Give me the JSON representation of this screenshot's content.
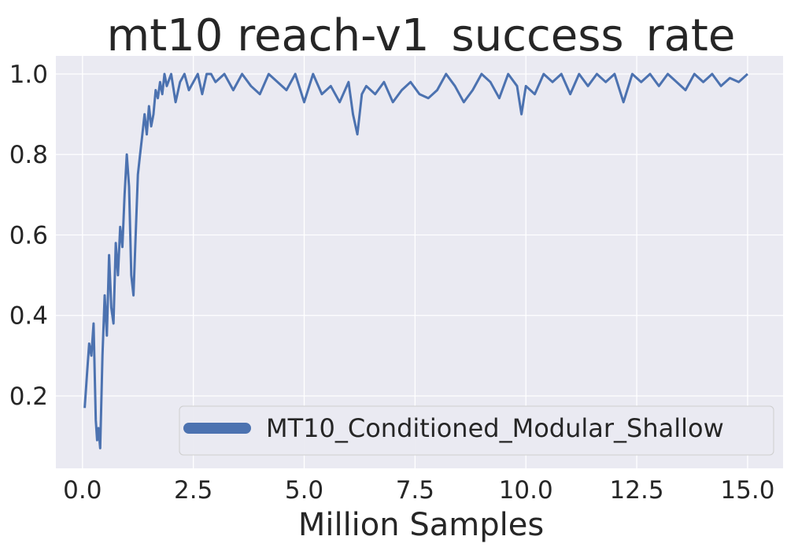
{
  "chart_data": {
    "type": "line",
    "title": "mt10 reach-v1_success_rate",
    "xlabel": "Million Samples",
    "ylabel": "",
    "xlim": [
      -0.6,
      15.8
    ],
    "ylim": [
      0.02,
      1.045
    ],
    "grid": true,
    "legend": "lower-right",
    "x_ticks": [
      0,
      2.5,
      5,
      7.5,
      10,
      12.5,
      15
    ],
    "x_tick_labels": [
      "0.0",
      "2.5",
      "5.0",
      "7.5",
      "10.0",
      "12.5",
      "15.0"
    ],
    "y_ticks": [
      0.2,
      0.4,
      0.6,
      0.8,
      1.0
    ],
    "y_tick_labels": [
      "0.2",
      "0.4",
      "0.6",
      "0.8",
      "1.0"
    ],
    "colors": {
      "background": "#eaeaf2",
      "grid": "#ffffff",
      "line": "#4c72b0",
      "text": "#262626"
    },
    "series": [
      {
        "name": "MT10_Conditioned_Modular_Shallow",
        "x": [
          0.05,
          0.1,
          0.15,
          0.2,
          0.25,
          0.3,
          0.33,
          0.36,
          0.4,
          0.45,
          0.5,
          0.55,
          0.6,
          0.65,
          0.7,
          0.75,
          0.8,
          0.85,
          0.9,
          0.95,
          1.0,
          1.05,
          1.1,
          1.15,
          1.2,
          1.25,
          1.3,
          1.35,
          1.4,
          1.45,
          1.5,
          1.55,
          1.6,
          1.65,
          1.7,
          1.75,
          1.8,
          1.85,
          1.9,
          2.0,
          2.1,
          2.2,
          2.3,
          2.4,
          2.5,
          2.6,
          2.7,
          2.8,
          2.9,
          3.0,
          3.2,
          3.4,
          3.6,
          3.8,
          4.0,
          4.2,
          4.4,
          4.6,
          4.8,
          5.0,
          5.2,
          5.4,
          5.6,
          5.8,
          6.0,
          6.1,
          6.2,
          6.3,
          6.4,
          6.6,
          6.8,
          7.0,
          7.2,
          7.4,
          7.6,
          7.8,
          8.0,
          8.2,
          8.4,
          8.6,
          8.8,
          9.0,
          9.2,
          9.4,
          9.6,
          9.8,
          9.9,
          10.0,
          10.2,
          10.4,
          10.6,
          10.8,
          11.0,
          11.2,
          11.4,
          11.6,
          11.8,
          12.0,
          12.2,
          12.4,
          12.6,
          12.8,
          13.0,
          13.2,
          13.4,
          13.6,
          13.8,
          14.0,
          14.2,
          14.4,
          14.6,
          14.8,
          15.0
        ],
        "values": [
          0.17,
          0.25,
          0.33,
          0.3,
          0.38,
          0.14,
          0.09,
          0.12,
          0.07,
          0.3,
          0.45,
          0.35,
          0.55,
          0.42,
          0.38,
          0.58,
          0.5,
          0.62,
          0.57,
          0.7,
          0.8,
          0.72,
          0.5,
          0.45,
          0.6,
          0.75,
          0.8,
          0.85,
          0.9,
          0.85,
          0.92,
          0.87,
          0.9,
          0.96,
          0.94,
          0.98,
          0.95,
          1.0,
          0.97,
          1.0,
          0.93,
          0.98,
          1.0,
          0.96,
          0.98,
          1.0,
          0.95,
          1.0,
          1.0,
          0.98,
          1.0,
          0.96,
          1.0,
          0.97,
          0.95,
          1.0,
          0.98,
          0.96,
          1.0,
          0.93,
          1.0,
          0.95,
          0.97,
          0.93,
          0.98,
          0.9,
          0.85,
          0.95,
          0.97,
          0.95,
          0.98,
          0.93,
          0.96,
          0.98,
          0.95,
          0.94,
          0.96,
          1.0,
          0.97,
          0.93,
          0.96,
          1.0,
          0.98,
          0.94,
          1.0,
          0.97,
          0.9,
          0.97,
          0.95,
          1.0,
          0.98,
          1.0,
          0.95,
          1.0,
          0.97,
          1.0,
          0.98,
          1.0,
          0.93,
          1.0,
          0.98,
          1.0,
          0.97,
          1.0,
          0.98,
          0.96,
          1.0,
          0.98,
          1.0,
          0.97,
          0.99,
          0.98,
          1.0
        ]
      }
    ]
  }
}
